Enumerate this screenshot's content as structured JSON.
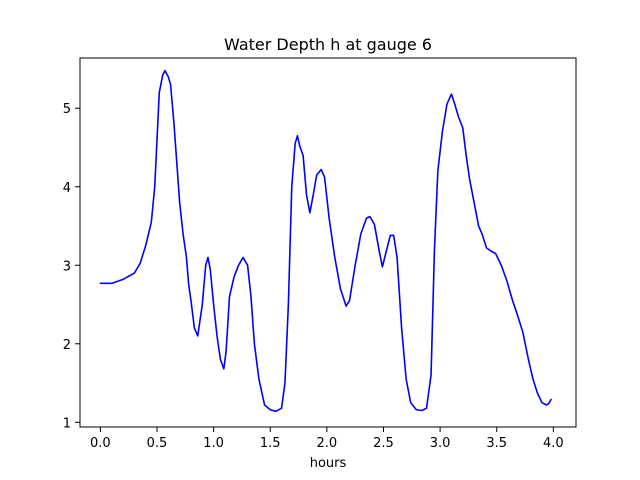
{
  "chart_data": {
    "type": "line",
    "title": "Water Depth h at gauge 6",
    "xlabel": "hours",
    "ylabel": "",
    "xlim": [
      -0.18,
      4.2
    ],
    "ylim": [
      0.94,
      5.64
    ],
    "xticks": [
      {
        "value": 0.0,
        "label": "0.0"
      },
      {
        "value": 0.5,
        "label": "0.5"
      },
      {
        "value": 1.0,
        "label": "1.0"
      },
      {
        "value": 1.5,
        "label": "1.5"
      },
      {
        "value": 2.0,
        "label": "2.0"
      },
      {
        "value": 2.5,
        "label": "2.5"
      },
      {
        "value": 3.0,
        "label": "3.0"
      },
      {
        "value": 3.5,
        "label": "3.5"
      },
      {
        "value": 4.0,
        "label": "4.0"
      }
    ],
    "yticks": [
      {
        "value": 1,
        "label": "1"
      },
      {
        "value": 2,
        "label": "2"
      },
      {
        "value": 3,
        "label": "3"
      },
      {
        "value": 4,
        "label": "4"
      },
      {
        "value": 5,
        "label": "5"
      }
    ],
    "grid": false,
    "legend": "none",
    "series": [
      {
        "color": "#0000ff",
        "points": [
          [
            0.0,
            2.77
          ],
          [
            0.1,
            2.77
          ],
          [
            0.2,
            2.82
          ],
          [
            0.3,
            2.9
          ],
          [
            0.35,
            3.02
          ],
          [
            0.4,
            3.25
          ],
          [
            0.45,
            3.55
          ],
          [
            0.48,
            4.0
          ],
          [
            0.5,
            4.6
          ],
          [
            0.52,
            5.2
          ],
          [
            0.55,
            5.42
          ],
          [
            0.57,
            5.48
          ],
          [
            0.6,
            5.4
          ],
          [
            0.62,
            5.3
          ],
          [
            0.65,
            4.8
          ],
          [
            0.68,
            4.2
          ],
          [
            0.7,
            3.8
          ],
          [
            0.73,
            3.4
          ],
          [
            0.76,
            3.1
          ],
          [
            0.78,
            2.75
          ],
          [
            0.8,
            2.55
          ],
          [
            0.83,
            2.2
          ],
          [
            0.86,
            2.1
          ],
          [
            0.9,
            2.5
          ],
          [
            0.93,
            3.0
          ],
          [
            0.95,
            3.1
          ],
          [
            0.97,
            2.95
          ],
          [
            1.0,
            2.5
          ],
          [
            1.03,
            2.1
          ],
          [
            1.06,
            1.8
          ],
          [
            1.09,
            1.68
          ],
          [
            1.11,
            1.9
          ],
          [
            1.14,
            2.6
          ],
          [
            1.18,
            2.85
          ],
          [
            1.22,
            3.0
          ],
          [
            1.26,
            3.1
          ],
          [
            1.3,
            3.0
          ],
          [
            1.33,
            2.6
          ],
          [
            1.36,
            2.0
          ],
          [
            1.4,
            1.55
          ],
          [
            1.45,
            1.22
          ],
          [
            1.5,
            1.16
          ],
          [
            1.55,
            1.14
          ],
          [
            1.6,
            1.18
          ],
          [
            1.63,
            1.5
          ],
          [
            1.66,
            2.5
          ],
          [
            1.69,
            4.0
          ],
          [
            1.72,
            4.55
          ],
          [
            1.74,
            4.65
          ],
          [
            1.76,
            4.52
          ],
          [
            1.79,
            4.4
          ],
          [
            1.82,
            3.9
          ],
          [
            1.85,
            3.67
          ],
          [
            1.88,
            3.9
          ],
          [
            1.91,
            4.15
          ],
          [
            1.95,
            4.22
          ],
          [
            1.98,
            4.12
          ],
          [
            2.02,
            3.6
          ],
          [
            2.07,
            3.1
          ],
          [
            2.12,
            2.7
          ],
          [
            2.17,
            2.48
          ],
          [
            2.2,
            2.55
          ],
          [
            2.25,
            3.0
          ],
          [
            2.3,
            3.4
          ],
          [
            2.35,
            3.6
          ],
          [
            2.38,
            3.62
          ],
          [
            2.42,
            3.52
          ],
          [
            2.46,
            3.2
          ],
          [
            2.49,
            2.98
          ],
          [
            2.52,
            3.15
          ],
          [
            2.56,
            3.38
          ],
          [
            2.59,
            3.38
          ],
          [
            2.62,
            3.1
          ],
          [
            2.66,
            2.2
          ],
          [
            2.7,
            1.55
          ],
          [
            2.74,
            1.25
          ],
          [
            2.79,
            1.16
          ],
          [
            2.84,
            1.15
          ],
          [
            2.88,
            1.18
          ],
          [
            2.92,
            1.6
          ],
          [
            2.95,
            3.2
          ],
          [
            2.98,
            4.2
          ],
          [
            3.02,
            4.7
          ],
          [
            3.06,
            5.05
          ],
          [
            3.1,
            5.18
          ],
          [
            3.13,
            5.05
          ],
          [
            3.16,
            4.9
          ],
          [
            3.2,
            4.75
          ],
          [
            3.23,
            4.4
          ],
          [
            3.26,
            4.1
          ],
          [
            3.3,
            3.8
          ],
          [
            3.34,
            3.5
          ],
          [
            3.37,
            3.4
          ],
          [
            3.41,
            3.22
          ],
          [
            3.45,
            3.18
          ],
          [
            3.49,
            3.15
          ],
          [
            3.54,
            3.0
          ],
          [
            3.59,
            2.8
          ],
          [
            3.64,
            2.55
          ],
          [
            3.68,
            2.38
          ],
          [
            3.73,
            2.15
          ],
          [
            3.78,
            1.8
          ],
          [
            3.82,
            1.55
          ],
          [
            3.86,
            1.37
          ],
          [
            3.9,
            1.25
          ],
          [
            3.94,
            1.22
          ],
          [
            3.96,
            1.24
          ],
          [
            3.98,
            1.29
          ]
        ]
      }
    ]
  }
}
